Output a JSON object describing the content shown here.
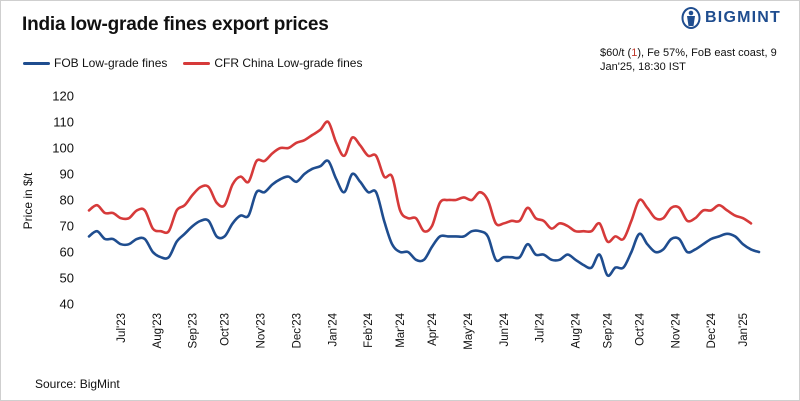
{
  "title": "India low-grade fines export prices",
  "brand": {
    "name": "BIGMINT",
    "color": "#1f4d8f"
  },
  "note": {
    "prefix": "$60/t (",
    "highlight": "1",
    "suffix": "), Fe 57%, FoB east coast, 9 Jan'25, 18:30 IST"
  },
  "source": "Source: BigMint",
  "chart_data": {
    "type": "line",
    "title": "India low-grade fines export prices",
    "xlabel": "",
    "ylabel": "Price in $/t",
    "ylim": [
      40,
      120
    ],
    "yticks": [
      40,
      50,
      60,
      70,
      80,
      90,
      100,
      110,
      120
    ],
    "x_month_labels": [
      "Jul'23",
      "Aug'23",
      "Sep'23",
      "Oct'23",
      "Nov'23",
      "Dec'23",
      "Jan'24",
      "Feb'24",
      "Mar'24",
      "Apr'24",
      "May'24",
      "Jun'24",
      "Jul'24",
      "Aug'24",
      "Sep'24",
      "Oct'24",
      "Nov'24",
      "Dec'24",
      "Jan'25"
    ],
    "x_month_positions": [
      4,
      8.5,
      13,
      17,
      21.5,
      26,
      30.5,
      35,
      39,
      43,
      47.5,
      52,
      56.5,
      61,
      65,
      69,
      73.5,
      78,
      82
    ],
    "x_range": [
      0,
      84
    ],
    "legend_position": "top-left",
    "series": [
      {
        "name": "FOB Low-grade fines",
        "color": "#1f4d8f",
        "values": [
          66,
          68,
          65,
          65,
          63,
          63,
          65,
          65,
          60,
          58,
          58,
          64,
          67,
          70,
          72,
          72,
          66,
          66,
          71,
          74,
          74,
          83,
          83,
          86,
          88,
          89,
          87,
          90,
          92,
          93,
          95,
          88,
          83,
          90,
          87,
          83,
          83,
          72,
          63,
          60,
          60,
          57,
          57,
          62,
          66,
          66,
          66,
          66,
          68,
          68,
          66,
          57,
          58,
          58,
          58,
          63,
          59,
          59,
          57,
          57,
          59,
          57,
          55,
          54,
          59,
          51,
          54,
          54,
          60,
          67,
          63,
          60,
          61,
          65,
          65,
          60,
          61,
          63,
          65,
          66,
          67,
          66,
          63,
          61,
          60
        ]
      },
      {
        "name": "CFR China Low-grade fines",
        "color": "#d63a3a",
        "values": [
          76,
          78,
          75,
          75,
          73,
          73,
          76,
          76,
          69,
          68,
          68,
          76,
          78,
          82,
          85,
          85,
          79,
          78,
          86,
          89,
          87,
          95,
          95,
          98,
          100,
          100,
          102,
          103,
          105,
          107,
          110,
          102,
          97,
          104,
          101,
          97,
          97,
          89,
          89,
          76,
          73,
          73,
          68,
          70,
          79,
          80,
          80,
          81,
          80,
          83,
          80,
          71,
          71,
          72,
          72,
          77,
          73,
          72,
          69,
          71,
          70,
          68,
          68,
          68,
          71,
          64,
          66,
          65,
          72,
          80,
          77,
          73,
          73,
          77,
          77,
          72,
          73,
          76,
          76,
          78,
          76,
          74,
          73,
          71
        ]
      }
    ]
  }
}
